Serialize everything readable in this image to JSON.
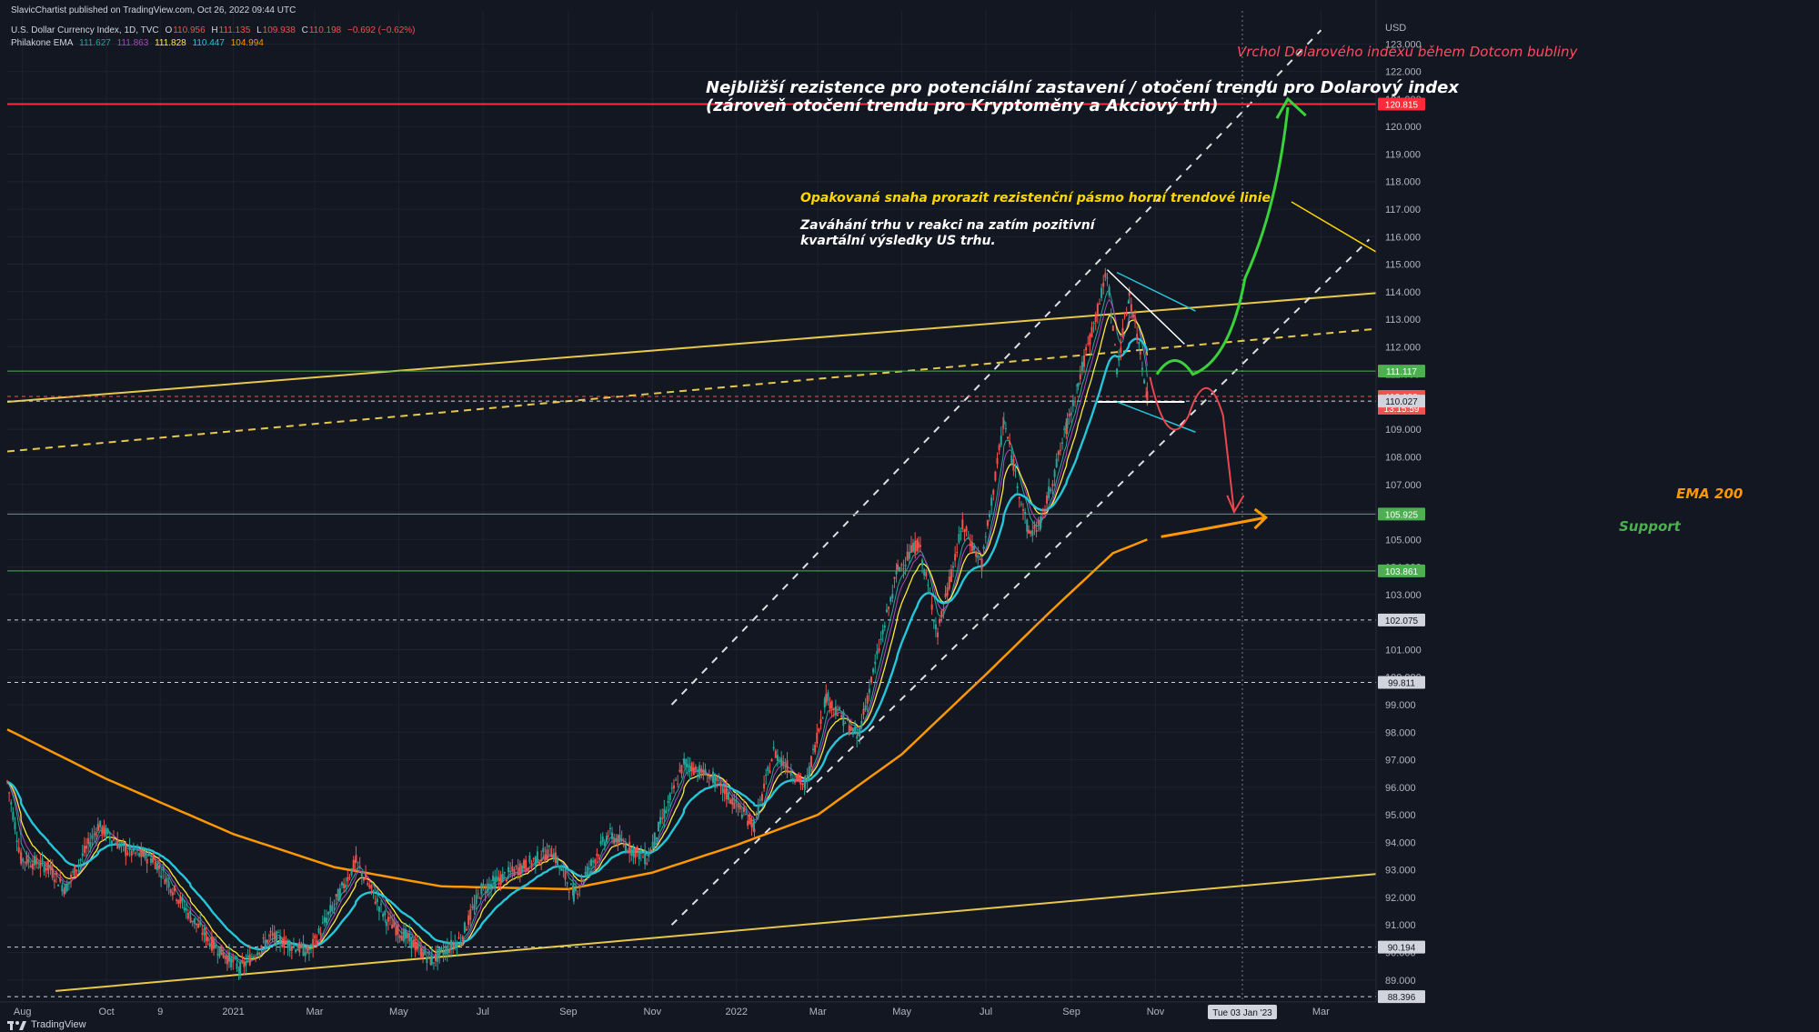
{
  "header": {
    "published": "SlavicChartist published on TradingView.com, Oct 26, 2022 09:44 UTC",
    "symbol": "U.S. Dollar Currency Index, 1D, TVC",
    "ohlc": {
      "o_label": "O",
      "o": "110.956",
      "h_label": "H",
      "h": "111.135",
      "l_label": "L",
      "l": "109.938",
      "c_label": "C",
      "c": "110.198",
      "chg": "−0.692 (−0.62%)"
    },
    "indicator_name": "Philakone EMA",
    "ema_values": [
      "111.627",
      "111.863",
      "111.828",
      "110.447",
      "104.994"
    ]
  },
  "colors": {
    "background": "#131722",
    "up": "#26a69a",
    "down": "#ef5350",
    "ema_short": "#ab47bc",
    "ema_mid": "#ffeb3b",
    "ema_long": "#26c6da",
    "ema200": "#ff9800",
    "trend_yellow": "#e6c84a",
    "resistance_red": "#ff2b3b",
    "support_green": "#4caf50"
  },
  "annotations": {
    "dotcom": "Vrchol Dolarového indexu během Dotcom bubliny",
    "resist_line1": "Nejbližší rezistence pro potenciální zastavení / otočení trendu pro Dolarový index",
    "resist_line2": "(zároveň otočení trendu pro Kryptoměny a Akciový trh)",
    "breakout": "Opakovaná snaha prorazit rezistenční pásmo horní trendové linie",
    "hesitation1": "Zaváhání trhu v reakci na zatím pozitivní",
    "hesitation2": "kvartální výsledky US trhu.",
    "ema200": "EMA 200",
    "support": "Support"
  },
  "axis": {
    "currency": "USD",
    "date_crosshair": "Tue 03 Jan '23",
    "current_time": "13:15:59"
  },
  "footer": {
    "brand": "TradingView",
    "logo_icon": "tradingview-logo-icon"
  },
  "chart_data": {
    "type": "candlestick",
    "title": "U.S. Dollar Currency Index, 1D, TVC",
    "ylabel": "USD",
    "ylim": [
      88.2,
      124.2
    ],
    "y_ticks": [
      89,
      90,
      91,
      92,
      93,
      94,
      95,
      96,
      97,
      98,
      99,
      100,
      101,
      102,
      103,
      104,
      105,
      106,
      107,
      108,
      109,
      110,
      111,
      112,
      113,
      114,
      115,
      116,
      117,
      118,
      119,
      120,
      121,
      122,
      123
    ],
    "x_ticks": [
      "Aug",
      "Oct",
      "9",
      "2021",
      "Mar",
      "May",
      "Jul",
      "Sep",
      "Nov",
      "2022",
      "Mar",
      "May",
      "Jul",
      "Sep",
      "Nov",
      "Mar"
    ],
    "x_tick_dates": [
      "2020-08-01",
      "2020-10-01",
      "2020-11-09",
      "2021-01-01",
      "2021-03-01",
      "2021-05-01",
      "2021-07-01",
      "2021-09-01",
      "2021-11-01",
      "2022-01-01",
      "2022-03-01",
      "2022-05-01",
      "2022-07-01",
      "2022-09-01",
      "2022-11-01",
      "2023-03-01"
    ],
    "x_range": [
      "2020-07-21",
      "2023-04-10"
    ],
    "price_series": [
      [
        "2020-07-21",
        96.2
      ],
      [
        "2020-07-31",
        93.4
      ],
      [
        "2020-08-20",
        93.1
      ],
      [
        "2020-09-01",
        92.3
      ],
      [
        "2020-09-25",
        94.6
      ],
      [
        "2020-10-15",
        93.7
      ],
      [
        "2020-11-04",
        93.4
      ],
      [
        "2020-12-01",
        91.3
      ],
      [
        "2020-12-15",
        90.4
      ],
      [
        "2021-01-06",
        89.4
      ],
      [
        "2021-01-28",
        90.6
      ],
      [
        "2021-02-25",
        90.0
      ],
      [
        "2021-03-31",
        93.3
      ],
      [
        "2021-04-22",
        91.2
      ],
      [
        "2021-05-25",
        89.7
      ],
      [
        "2021-06-15",
        90.5
      ],
      [
        "2021-06-30",
        92.3
      ],
      [
        "2021-08-20",
        93.7
      ],
      [
        "2021-09-05",
        92.1
      ],
      [
        "2021-09-30",
        94.3
      ],
      [
        "2021-10-28",
        93.4
      ],
      [
        "2021-11-24",
        96.9
      ],
      [
        "2021-12-15",
        96.3
      ],
      [
        "2022-01-14",
        94.6
      ],
      [
        "2022-01-28",
        97.3
      ],
      [
        "2022-02-20",
        96.0
      ],
      [
        "2022-03-07",
        99.3
      ],
      [
        "2022-03-30",
        97.8
      ],
      [
        "2022-04-28",
        103.9
      ],
      [
        "2022-05-13",
        104.9
      ],
      [
        "2022-05-27",
        101.6
      ],
      [
        "2022-06-14",
        105.5
      ],
      [
        "2022-06-28",
        104.1
      ],
      [
        "2022-07-14",
        109.3
      ],
      [
        "2022-08-01",
        105.2
      ],
      [
        "2022-08-10",
        105.6
      ],
      [
        "2022-08-29",
        109.2
      ],
      [
        "2022-09-06",
        110.7
      ],
      [
        "2022-09-27",
        114.7
      ],
      [
        "2022-10-04",
        111.2
      ],
      [
        "2022-10-13",
        113.9
      ],
      [
        "2022-10-21",
        111.8
      ],
      [
        "2022-10-26",
        110.2
      ]
    ],
    "ema200": [
      [
        "2020-07-21",
        98.1
      ],
      [
        "2020-10-01",
        96.3
      ],
      [
        "2021-01-01",
        94.3
      ],
      [
        "2021-03-15",
        93.1
      ],
      [
        "2021-06-01",
        92.4
      ],
      [
        "2021-09-01",
        92.3
      ],
      [
        "2021-11-01",
        92.9
      ],
      [
        "2022-01-01",
        93.9
      ],
      [
        "2022-03-01",
        95.0
      ],
      [
        "2022-05-01",
        97.2
      ],
      [
        "2022-07-01",
        100.1
      ],
      [
        "2022-08-15",
        102.3
      ],
      [
        "2022-10-01",
        104.5
      ],
      [
        "2022-10-26",
        105.0
      ]
    ],
    "levels": [
      {
        "price": 120.815,
        "label": "120.815",
        "style": "solid",
        "color": "#ff2b3b"
      },
      {
        "price": 111.117,
        "label": "111.117",
        "style": "solid",
        "color": "#4caf50"
      },
      {
        "price": 110.198,
        "label": "110.198",
        "style": "dashed",
        "color": "#ef5350"
      },
      {
        "price": 110.027,
        "label": "110.027",
        "style": "dashed",
        "color": "#d1d4dc"
      },
      {
        "price": 105.925,
        "label": "105.925",
        "style": "solid",
        "color": "#4caf50"
      },
      {
        "price": 103.861,
        "label": "103.861",
        "style": "solid",
        "color": "#4caf50"
      },
      {
        "price": 102.075,
        "label": "102.075",
        "style": "dashed",
        "color": "#d1d4dc"
      },
      {
        "price": 99.811,
        "label": "99.811",
        "style": "dashed",
        "color": "#d1d4dc"
      },
      {
        "price": 90.194,
        "label": "90.194",
        "style": "dashed",
        "color": "#d1d4dc"
      },
      {
        "price": 88.396,
        "label": "88.396",
        "style": "dashed",
        "color": "#d1d4dc"
      }
    ],
    "grid": true,
    "legend": "top-left"
  }
}
